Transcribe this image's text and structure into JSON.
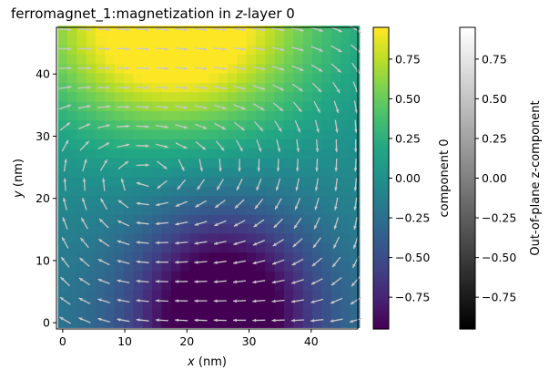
{
  "chart_data": {
    "type": "heatmap",
    "title_main": "ferromagnet_1:magnetization in ",
    "title_italic": "z",
    "title_tail": "-layer 0",
    "xlabel_var": "x",
    "xlabel_unit": " (nm)",
    "ylabel_var": "y",
    "ylabel_unit": " (nm)",
    "xlim": [
      -1,
      47.5
    ],
    "ylim": [
      -1,
      47.5
    ],
    "x_ticks": [
      0,
      10,
      20,
      30,
      40
    ],
    "y_ticks": [
      0,
      10,
      20,
      30,
      40
    ],
    "grid_n": 32,
    "quiver_n": 16,
    "colormap": "viridis",
    "colorbar1": {
      "label": "component 0",
      "range": [
        -0.95,
        0.95
      ],
      "ticks": [
        "0.75",
        "0.50",
        "0.25",
        "0.00",
        "−0.25",
        "−0.50",
        "−0.75"
      ],
      "tick_values": [
        0.75,
        0.5,
        0.25,
        0,
        -0.25,
        -0.5,
        -0.75
      ]
    },
    "colorbar2": {
      "label": "Out-of-plane z-component",
      "range": [
        -0.95,
        0.95
      ],
      "ticks": [
        "0.75",
        "0.50",
        "0.25",
        "0.00",
        "−0.25",
        "−0.50",
        "−0.75"
      ],
      "tick_values": [
        0.75,
        0.5,
        0.25,
        0,
        -0.25,
        -0.5,
        -0.75
      ]
    },
    "field_description": "vortex-like in-plane magnetization: +x along top, -x along bottom",
    "arrow_color": "#c8c8c8"
  }
}
